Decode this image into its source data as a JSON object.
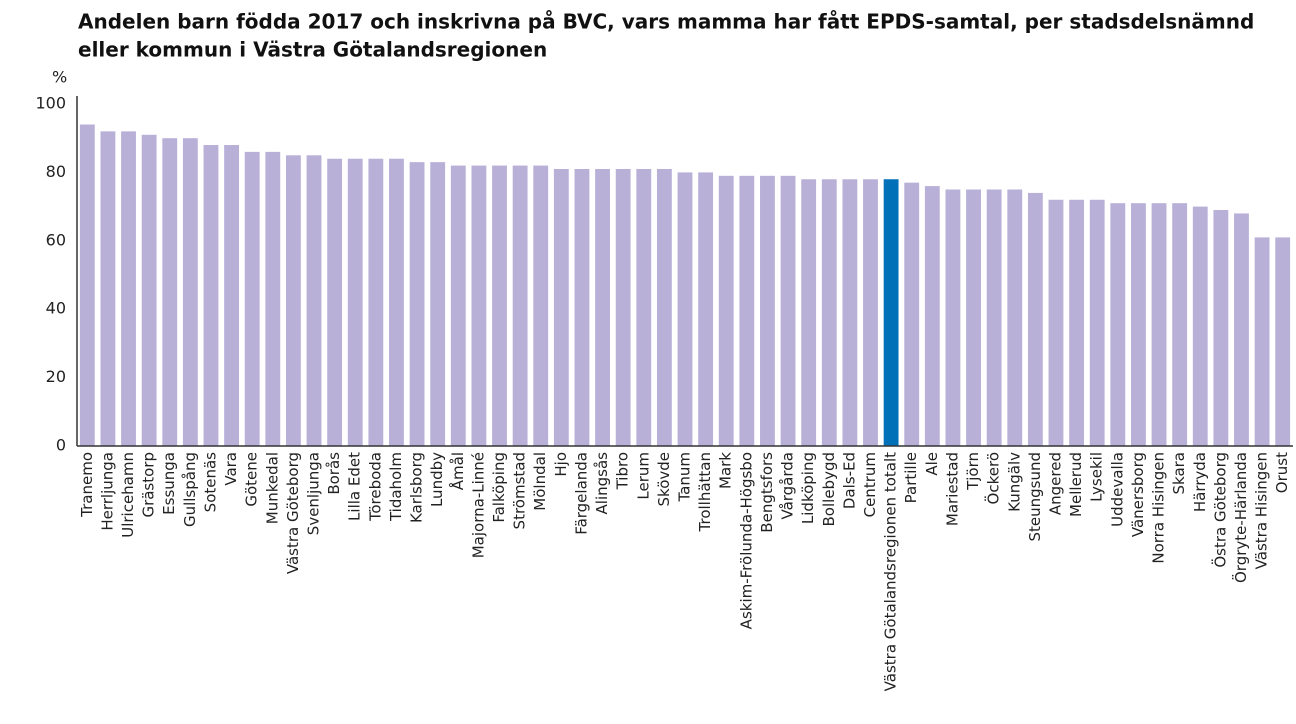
{
  "chart_data": {
    "type": "bar",
    "title": [
      "Andelen barn födda 2017 och inskrivna på BVC, vars mamma har fått EPDS-samtal, per stadsdelsnämnd",
      "eller kommun i Västra Götalandsregionen"
    ],
    "y_label": "%",
    "categories": [
      "Tranemo",
      "Herrljunga",
      "Ulricehamn",
      "Grästorp",
      "Essunga",
      "Gullspång",
      "Sotenäs",
      "Vara",
      "Götene",
      "Munkedal",
      "Västra Göteborg",
      "Svenljunga",
      "Borås",
      "Lilla Edet",
      "Töreboda",
      "Tidaholm",
      "Karlsborg",
      "Lundby",
      "Åmål",
      "Majorna-Linné",
      "Falköping",
      "Strömstad",
      "Mölndal",
      "Hjo",
      "Färgelanda",
      "Alingsås",
      "Tibro",
      "Lerum",
      "Skövde",
      "Tanum",
      "Trollhättan",
      "Mark",
      "Askim-Frölunda-Högsbo",
      "Bengtsfors",
      "Vårgårda",
      "Lidköping",
      "Bollebygd",
      "Dals-Ed",
      "Centrum",
      "Västra Götalandsregionen totalt",
      "Partille",
      "Ale",
      "Mariestad",
      "Tjörn",
      "Öckerö",
      "Kungälv",
      "Steungsund",
      "Angered",
      "Mellerud",
      "Lysekil",
      "Uddevalla",
      "Vänersborg",
      "Norra Hisingen",
      "Skara",
      "Härryda",
      "Östra Göteborg",
      "Örgryte-Härlanda",
      "Västra Hisingen",
      "Orust"
    ],
    "values": [
      94,
      92,
      92,
      91,
      90,
      90,
      88,
      88,
      86,
      86,
      85,
      85,
      84,
      84,
      84,
      84,
      83,
      83,
      82,
      82,
      82,
      82,
      82,
      81,
      81,
      81,
      81,
      81,
      81,
      80,
      80,
      79,
      79,
      79,
      79,
      78,
      78,
      78,
      78,
      78,
      77,
      76,
      75,
      75,
      75,
      75,
      74,
      72,
      72,
      72,
      71,
      71,
      71,
      71,
      70,
      69,
      68,
      61,
      61
    ],
    "colors": [
      "#b9b0d8",
      "#b9b0d8",
      "#b9b0d8",
      "#b9b0d8",
      "#b9b0d8",
      "#b9b0d8",
      "#b9b0d8",
      "#b9b0d8",
      "#b9b0d8",
      "#b9b0d8",
      "#b9b0d8",
      "#b9b0d8",
      "#b9b0d8",
      "#b9b0d8",
      "#b9b0d8",
      "#b9b0d8",
      "#b9b0d8",
      "#b9b0d8",
      "#b9b0d8",
      "#b9b0d8",
      "#b9b0d8",
      "#b9b0d8",
      "#b9b0d8",
      "#b9b0d8",
      "#b9b0d8",
      "#b9b0d8",
      "#b9b0d8",
      "#b9b0d8",
      "#b9b0d8",
      "#b9b0d8",
      "#b9b0d8",
      "#b9b0d8",
      "#b9b0d8",
      "#b9b0d8",
      "#b9b0d8",
      "#b9b0d8",
      "#b9b0d8",
      "#b9b0d8",
      "#b9b0d8",
      "#0070b8",
      "#b9b0d8",
      "#b9b0d8",
      "#b9b0d8",
      "#b9b0d8",
      "#b9b0d8",
      "#b9b0d8",
      "#b9b0d8",
      "#b9b0d8",
      "#b9b0d8",
      "#b9b0d8",
      "#b9b0d8",
      "#b9b0d8",
      "#b9b0d8",
      "#b9b0d8",
      "#b9b0d8",
      "#b9b0d8",
      "#b9b0d8",
      "#b9b0d8",
      "#b9b0d8"
    ],
    "ylim": [
      0,
      100
    ],
    "yticks": [
      0,
      20,
      40,
      60,
      80,
      100
    ],
    "grid": false
  }
}
